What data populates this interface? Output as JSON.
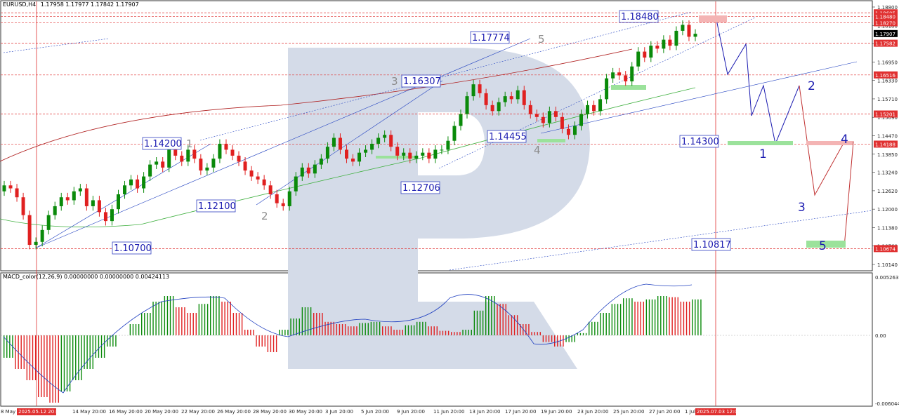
{
  "header": {
    "symbol": "EURUSD,H4",
    "ohlc": "1.17958 1.17977 1.17842 1.17907",
    "indicator": "MACD_color(12,26,9) 0.00000000 0.00000000 0.00424113"
  },
  "price_axis": {
    "ticks": [
      "1.18800",
      "1.18180",
      "1.17560",
      "1.16950",
      "1.16330",
      "1.15710",
      "1.15090",
      "1.14470",
      "1.13850",
      "1.13240",
      "1.12620",
      "1.12000",
      "1.11380",
      "1.10760",
      "1.10140"
    ],
    "current_price": "1.17907",
    "level_tags": [
      {
        "text": "1.18605",
        "price": 1.18605,
        "color": "#e03030"
      },
      {
        "text": "1.18480",
        "price": 1.1848,
        "color": "#e03030"
      },
      {
        "text": "1.18270",
        "price": 1.1827,
        "color": "#e03030"
      },
      {
        "text": "1.17582",
        "price": 1.17582,
        "color": "#e03030"
      },
      {
        "text": "1.16516",
        "price": 1.16516,
        "color": "#e03030"
      },
      {
        "text": "1.15201",
        "price": 1.15201,
        "color": "#e03030"
      },
      {
        "text": "1.14188",
        "price": 1.14188,
        "color": "#e03030"
      },
      {
        "text": "1.10674",
        "price": 1.10674,
        "color": "#e03030"
      }
    ]
  },
  "macd_axis": {
    "ticks": [
      "0.0052637",
      "0.00",
      "-0.0060442"
    ]
  },
  "time_axis": {
    "labels": [
      "8 May 2025",
      "14 May 20:00",
      "16 May 20:00",
      "20 May 20:00",
      "22 May 20:00",
      "26 May 20:00",
      "28 May 20:00",
      "30 May 20:00",
      "3 Jun 20:00",
      "5 Jun 20:00",
      "9 Jun 20:00",
      "11 Jun 20:00",
      "13 Jun 20:00",
      "17 Jun 20:00",
      "19 Jun 20:00",
      "23 Jun 20:00",
      "25 Jun 20:00",
      "27 Jun 20:00",
      "1 Jul"
    ],
    "highlight_start": "2025.05.12 20:00",
    "highlight_end": "2025.07.03 12:00"
  },
  "annotations": {
    "price_boxes": [
      "1.18480",
      "1.17774",
      "1.16307",
      "1.14200",
      "1.14455",
      "1.12100",
      "1.12706",
      "1.10700",
      "1.14300",
      "1.10817"
    ],
    "grey_waves": [
      "1",
      "2",
      "3",
      "4",
      "5"
    ],
    "blue_waves": [
      "1",
      "2",
      "3",
      "4",
      "5"
    ]
  },
  "colors": {
    "bull": "#0a8a0a",
    "bear": "#e02020",
    "level": "#e03030",
    "wave": "#1a1ab0",
    "watermark": "#d4dbe8"
  },
  "chart_data": {
    "type": "candlestick",
    "instrument": "EURUSD",
    "timeframe": "H4",
    "ylim": [
      1.1014,
      1.188
    ],
    "last": {
      "open": 1.17958,
      "high": 1.17977,
      "low": 1.17842,
      "close": 1.17907
    },
    "closes_approx": [
      1.128,
      1.127,
      1.124,
      1.118,
      1.108,
      1.109,
      1.113,
      1.118,
      1.121,
      1.124,
      1.123,
      1.126,
      1.127,
      1.121,
      1.123,
      1.119,
      1.116,
      1.12,
      1.125,
      1.128,
      1.13,
      1.127,
      1.131,
      1.135,
      1.136,
      1.134,
      1.14,
      1.138,
      1.136,
      1.14,
      1.137,
      1.133,
      1.134,
      1.137,
      1.142,
      1.14,
      1.138,
      1.136,
      1.133,
      1.131,
      1.13,
      1.128,
      1.125,
      1.122,
      1.121,
      1.126,
      1.131,
      1.134,
      1.132,
      1.135,
      1.137,
      1.141,
      1.144,
      1.14,
      1.137,
      1.136,
      1.139,
      1.14,
      1.142,
      1.144,
      1.145,
      1.141,
      1.138,
      1.139,
      1.137,
      1.138,
      1.139,
      1.137,
      1.14,
      1.14,
      1.143,
      1.148,
      1.152,
      1.158,
      1.162,
      1.159,
      1.155,
      1.153,
      1.156,
      1.158,
      1.157,
      1.16,
      1.155,
      1.152,
      1.151,
      1.149,
      1.153,
      1.151,
      1.147,
      1.145,
      1.148,
      1.152,
      1.155,
      1.153,
      1.157,
      1.164,
      1.166,
      1.165,
      1.163,
      1.168,
      1.173,
      1.171,
      1.175,
      1.174,
      1.177,
      1.175,
      1.18,
      1.182,
      1.178,
      1.179
    ],
    "macd_hist_approx": [
      -0.002,
      -0.003,
      -0.004,
      -0.0055,
      -0.006,
      -0.005,
      -0.004,
      -0.003,
      -0.002,
      -0.001,
      0.0,
      0.001,
      0.002,
      0.003,
      0.0035,
      0.0025,
      0.002,
      0.0028,
      0.0035,
      0.003,
      0.002,
      0.0005,
      -0.001,
      -0.0015,
      0.0005,
      0.0015,
      0.0025,
      0.002,
      0.0012,
      0.001,
      0.0008,
      0.0011,
      0.0012,
      0.0008,
      0.0005,
      0.0009,
      0.0012,
      0.0008,
      0.0004,
      0.0003,
      0.0005,
      0.0022,
      0.0035,
      0.0028,
      0.0018,
      0.001,
      0.0003,
      -0.0006,
      -0.001,
      -0.0006,
      0.0002,
      0.0012,
      0.002,
      0.0028,
      0.0033,
      0.003,
      0.0032,
      0.0035,
      0.0034,
      0.003,
      0.0032
    ]
  }
}
